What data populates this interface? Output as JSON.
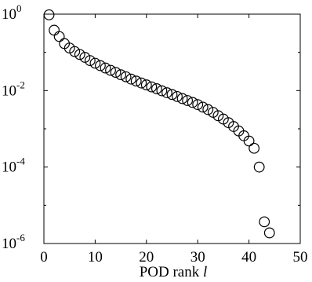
{
  "chart_data": {
    "type": "scatter",
    "title": "",
    "xlabel": "POD rank",
    "xlabel_var": "l",
    "ylabel": "",
    "xlim": [
      0,
      50
    ],
    "ylim": [
      1e-06,
      1
    ],
    "yscale": "log",
    "grid": false,
    "marker": "open-circle",
    "x_ticks": [
      "0",
      "10",
      "20",
      "30",
      "40",
      "50"
    ],
    "y_ticks": [
      {
        "base": "10",
        "exp": "0",
        "value": 1
      },
      {
        "base": "10",
        "exp": "-2",
        "value": 0.01
      },
      {
        "base": "10",
        "exp": "-4",
        "value": 0.0001
      },
      {
        "base": "10",
        "exp": "-6",
        "value": 1e-06
      }
    ],
    "points": [
      [
        1,
        0.96
      ],
      [
        2,
        0.38
      ],
      [
        3,
        0.26
      ],
      [
        4,
        0.17
      ],
      [
        5,
        0.13
      ],
      [
        6,
        0.105
      ],
      [
        7,
        0.088
      ],
      [
        8,
        0.074
      ],
      [
        9,
        0.061
      ],
      [
        10,
        0.052
      ],
      [
        11,
        0.045
      ],
      [
        12,
        0.039
      ],
      [
        13,
        0.034
      ],
      [
        14,
        0.03
      ],
      [
        15,
        0.026
      ],
      [
        16,
        0.023
      ],
      [
        17,
        0.02
      ],
      [
        18,
        0.0178
      ],
      [
        19,
        0.0158
      ],
      [
        20,
        0.0141
      ],
      [
        21,
        0.0125
      ],
      [
        22,
        0.0112
      ],
      [
        23,
        0.0099
      ],
      [
        24,
        0.0088
      ],
      [
        25,
        0.0079
      ],
      [
        26,
        0.007
      ],
      [
        27,
        0.0062
      ],
      [
        28,
        0.0055
      ],
      [
        29,
        0.0049
      ],
      [
        30,
        0.0043
      ],
      [
        31,
        0.0037
      ],
      [
        32,
        0.0032
      ],
      [
        33,
        0.0027
      ],
      [
        34,
        0.0022
      ],
      [
        35,
        0.0018
      ],
      [
        36,
        0.00145
      ],
      [
        37,
        0.00115
      ],
      [
        38,
        0.00088
      ],
      [
        39,
        0.00066
      ],
      [
        40,
        0.00048
      ],
      [
        41,
        0.00031
      ],
      [
        42,
        0.0001
      ],
      [
        43,
        3.7e-06
      ],
      [
        44,
        1.9e-06
      ]
    ]
  }
}
